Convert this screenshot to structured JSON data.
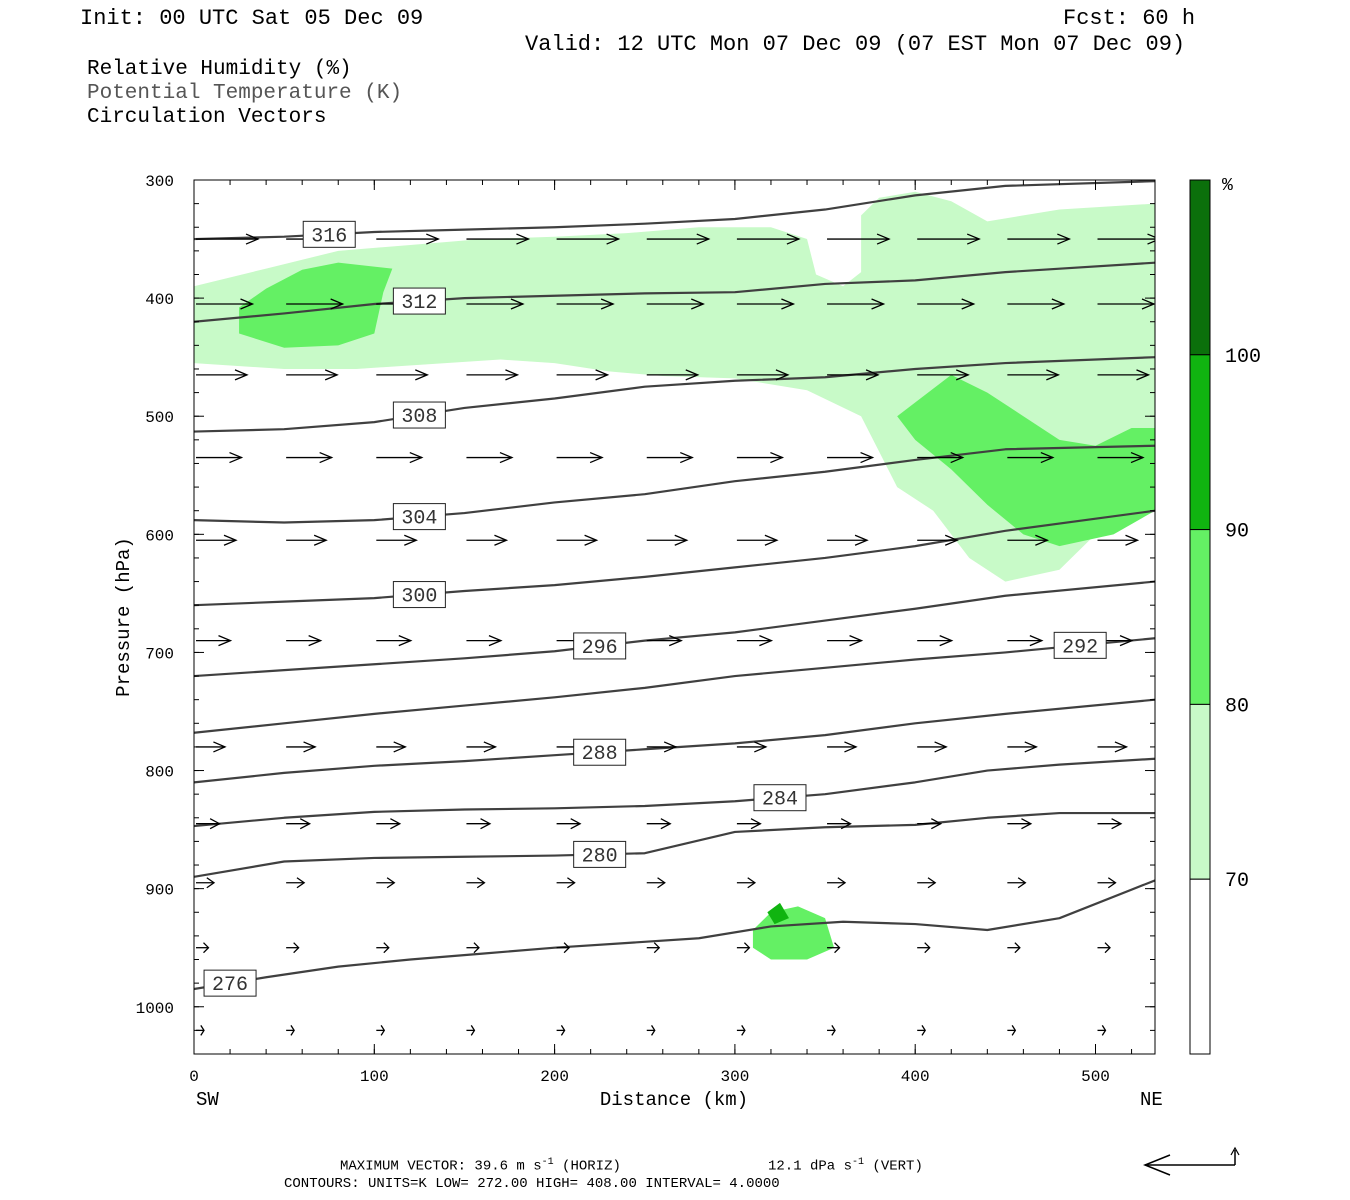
{
  "header": {
    "init": "Init: 00 UTC Sat 05 Dec 09",
    "fcst": "Fcst:   60 h",
    "valid": "Valid: 12 UTC Mon 07 Dec 09 (07 EST Mon 07 Dec 09)"
  },
  "legend": {
    "rh": "Relative Humidity (%)",
    "theta": "Potential Temperature (K)",
    "vectors": "Circulation Vectors"
  },
  "footer": {
    "max_vector_prefix": "MAXIMUM VECTOR:  39.6 m s",
    "horiz_suffix": " (HORIZ)",
    "vert_prefix": "12.1 dPa s",
    "vert_suffix": " (VERT)",
    "exponent": "-1",
    "contours": "CONTOURS:  UNITS=K  LOW=  272.00      HIGH=  408.00      INTERVAL=    4.0000"
  },
  "colors": {
    "rh70": "#c8fac8",
    "rh80": "#64f064",
    "rh90": "#10b410",
    "rh100": "#0b700b",
    "contour": "#404040"
  },
  "chart_data": {
    "type": "cross-section",
    "xlabel": "Distance (km)",
    "ylabel": "Pressure (hPa)",
    "xlim": [
      0,
      533
    ],
    "ylim": [
      1040,
      300
    ],
    "x_ticks": [
      "0",
      "100",
      "200",
      "300",
      "400",
      "500"
    ],
    "y_ticks": [
      "300",
      "400",
      "500",
      "600",
      "700",
      "800",
      "900",
      "1000"
    ],
    "left_end": "SW",
    "right_end": "NE",
    "colorbar": {
      "unit": "%",
      "levels": [
        "70",
        "80",
        "90",
        "100"
      ]
    },
    "theta_contours": [
      {
        "label": "276",
        "points": [
          [
            0,
            985
          ],
          [
            40,
            975
          ],
          [
            80,
            966
          ],
          [
            120,
            960
          ],
          [
            160,
            955
          ],
          [
            200,
            950
          ],
          [
            240,
            946
          ],
          [
            280,
            942
          ],
          [
            320,
            932
          ],
          [
            360,
            928
          ],
          [
            400,
            930
          ],
          [
            440,
            935
          ],
          [
            480,
            925
          ],
          [
            533,
            893
          ]
        ]
      },
      {
        "label": "280",
        "points": [
          [
            0,
            890
          ],
          [
            50,
            877
          ],
          [
            100,
            874
          ],
          [
            150,
            873
          ],
          [
            200,
            872
          ],
          [
            250,
            870
          ],
          [
            300,
            852
          ],
          [
            350,
            848
          ],
          [
            400,
            846
          ],
          [
            440,
            840
          ],
          [
            480,
            836
          ],
          [
            533,
            836
          ]
        ]
      },
      {
        "label": "284",
        "points": [
          [
            0,
            847
          ],
          [
            50,
            840
          ],
          [
            100,
            835
          ],
          [
            150,
            833
          ],
          [
            200,
            832
          ],
          [
            250,
            830
          ],
          [
            300,
            826
          ],
          [
            350,
            820
          ],
          [
            400,
            810
          ],
          [
            440,
            800
          ],
          [
            480,
            795
          ],
          [
            533,
            790
          ]
        ]
      },
      {
        "label": "288",
        "points": [
          [
            0,
            810
          ],
          [
            50,
            802
          ],
          [
            100,
            796
          ],
          [
            150,
            792
          ],
          [
            200,
            787
          ],
          [
            250,
            782
          ],
          [
            300,
            777
          ],
          [
            350,
            770
          ],
          [
            400,
            760
          ],
          [
            450,
            752
          ],
          [
            533,
            740
          ]
        ]
      },
      {
        "label": "292",
        "points": [
          [
            0,
            768
          ],
          [
            50,
            760
          ],
          [
            100,
            752
          ],
          [
            150,
            745
          ],
          [
            200,
            738
          ],
          [
            250,
            730
          ],
          [
            300,
            720
          ],
          [
            350,
            713
          ],
          [
            400,
            706
          ],
          [
            450,
            700
          ],
          [
            533,
            688
          ]
        ]
      },
      {
        "label": "296",
        "points": [
          [
            0,
            720
          ],
          [
            50,
            715
          ],
          [
            100,
            710
          ],
          [
            150,
            705
          ],
          [
            200,
            699
          ],
          [
            250,
            690
          ],
          [
            300,
            683
          ],
          [
            350,
            673
          ],
          [
            400,
            663
          ],
          [
            450,
            652
          ],
          [
            533,
            640
          ]
        ]
      },
      {
        "label": "300",
        "points": [
          [
            0,
            660
          ],
          [
            50,
            657
          ],
          [
            100,
            654
          ],
          [
            150,
            648
          ],
          [
            200,
            643
          ],
          [
            250,
            636
          ],
          [
            300,
            628
          ],
          [
            350,
            620
          ],
          [
            400,
            610
          ],
          [
            450,
            597
          ],
          [
            533,
            580
          ]
        ]
      },
      {
        "label": "304",
        "points": [
          [
            0,
            588
          ],
          [
            50,
            590
          ],
          [
            100,
            588
          ],
          [
            150,
            582
          ],
          [
            200,
            573
          ],
          [
            250,
            566
          ],
          [
            300,
            555
          ],
          [
            350,
            547
          ],
          [
            400,
            537
          ],
          [
            450,
            528
          ],
          [
            533,
            525
          ]
        ]
      },
      {
        "label": "308",
        "points": [
          [
            0,
            513
          ],
          [
            50,
            511
          ],
          [
            100,
            505
          ],
          [
            150,
            493
          ],
          [
            200,
            485
          ],
          [
            250,
            475
          ],
          [
            300,
            470
          ],
          [
            350,
            467
          ],
          [
            400,
            460
          ],
          [
            450,
            455
          ],
          [
            533,
            450
          ]
        ]
      },
      {
        "label": "312",
        "points": [
          [
            0,
            420
          ],
          [
            50,
            413
          ],
          [
            100,
            405
          ],
          [
            150,
            400
          ],
          [
            200,
            398
          ],
          [
            250,
            396
          ],
          [
            300,
            395
          ],
          [
            350,
            388
          ],
          [
            400,
            385
          ],
          [
            450,
            378
          ],
          [
            533,
            370
          ]
        ]
      },
      {
        "label": "316",
        "points": [
          [
            0,
            350
          ],
          [
            50,
            348
          ],
          [
            100,
            344
          ],
          [
            150,
            342
          ],
          [
            200,
            340
          ],
          [
            250,
            337
          ],
          [
            300,
            333
          ],
          [
            350,
            325
          ],
          [
            400,
            313
          ],
          [
            450,
            305
          ],
          [
            533,
            301
          ]
        ]
      }
    ],
    "rh_regions": [
      {
        "level": "70",
        "points": [
          [
            0,
            390
          ],
          [
            40,
            375
          ],
          [
            80,
            360
          ],
          [
            120,
            355
          ],
          [
            160,
            350
          ],
          [
            200,
            348
          ],
          [
            240,
            345
          ],
          [
            280,
            340
          ],
          [
            320,
            340
          ],
          [
            340,
            350
          ],
          [
            345,
            380
          ],
          [
            360,
            390
          ],
          [
            370,
            378
          ],
          [
            370,
            330
          ],
          [
            380,
            315
          ],
          [
            400,
            310
          ],
          [
            420,
            318
          ],
          [
            440,
            335
          ],
          [
            460,
            330
          ],
          [
            480,
            325
          ],
          [
            533,
            320
          ],
          [
            533,
            530
          ],
          [
            510,
            585
          ],
          [
            480,
            630
          ],
          [
            450,
            640
          ],
          [
            430,
            620
          ],
          [
            410,
            580
          ],
          [
            390,
            560
          ],
          [
            380,
            530
          ],
          [
            370,
            500
          ],
          [
            340,
            478
          ],
          [
            300,
            468
          ],
          [
            260,
            466
          ],
          [
            230,
            462
          ],
          [
            200,
            455
          ],
          [
            170,
            452
          ],
          [
            130,
            456
          ],
          [
            90,
            460
          ],
          [
            50,
            460
          ],
          [
            0,
            455
          ]
        ]
      },
      {
        "level": "80",
        "points": [
          [
            25,
            408
          ],
          [
            40,
            392
          ],
          [
            60,
            376
          ],
          [
            80,
            370
          ],
          [
            110,
            375
          ],
          [
            105,
            395
          ],
          [
            100,
            430
          ],
          [
            80,
            440
          ],
          [
            50,
            442
          ],
          [
            25,
            430
          ]
        ]
      },
      {
        "level": "80",
        "points": [
          [
            420,
            465
          ],
          [
            440,
            480
          ],
          [
            460,
            500
          ],
          [
            480,
            520
          ],
          [
            500,
            525
          ],
          [
            520,
            510
          ],
          [
            533,
            510
          ],
          [
            533,
            580
          ],
          [
            510,
            600
          ],
          [
            480,
            610
          ],
          [
            460,
            600
          ],
          [
            440,
            575
          ],
          [
            420,
            545
          ],
          [
            400,
            520
          ],
          [
            390,
            500
          ]
        ]
      },
      {
        "level": "80",
        "points": [
          [
            310,
            935
          ],
          [
            320,
            920
          ],
          [
            335,
            915
          ],
          [
            350,
            925
          ],
          [
            355,
            950
          ],
          [
            340,
            960
          ],
          [
            320,
            960
          ],
          [
            310,
            950
          ]
        ]
      },
      {
        "level": "90",
        "points": [
          [
            318,
            920
          ],
          [
            325,
            912
          ],
          [
            330,
            925
          ],
          [
            322,
            930
          ]
        ]
      }
    ],
    "vectors": [
      {
        "p": 350,
        "xs": [
          0,
          50,
          100,
          150,
          200,
          250,
          300,
          350,
          400,
          450,
          500
        ]
      },
      {
        "p": 405,
        "xs": [
          0,
          50,
          100,
          150,
          200,
          250,
          300,
          350,
          400,
          450,
          500
        ]
      },
      {
        "p": 465,
        "xs": [
          0,
          50,
          100,
          150,
          200,
          250,
          300,
          350,
          400,
          450,
          500
        ]
      },
      {
        "p": 535,
        "xs": [
          0,
          50,
          100,
          150,
          200,
          250,
          300,
          350,
          400,
          450,
          500
        ]
      },
      {
        "p": 605,
        "xs": [
          0,
          50,
          100,
          150,
          200,
          250,
          300,
          350,
          400,
          450,
          500
        ]
      },
      {
        "p": 690,
        "xs": [
          0,
          50,
          100,
          150,
          200,
          250,
          300,
          350,
          400,
          450,
          500
        ]
      },
      {
        "p": 780,
        "xs": [
          0,
          50,
          100,
          150,
          200,
          250,
          300,
          350,
          400,
          450,
          500
        ]
      },
      {
        "p": 845,
        "xs": [
          0,
          50,
          100,
          150,
          200,
          250,
          300,
          350,
          400,
          450,
          500
        ]
      },
      {
        "p": 895,
        "xs": [
          0,
          50,
          100,
          150,
          200,
          250,
          300,
          350,
          400,
          450,
          500
        ]
      },
      {
        "p": 950,
        "xs": [
          0,
          50,
          100,
          150,
          200,
          250,
          300,
          350,
          400,
          450,
          500
        ]
      },
      {
        "p": 1020,
        "xs": [
          0,
          50,
          100,
          150,
          200,
          250,
          300,
          350,
          400,
          450,
          500
        ]
      }
    ]
  }
}
